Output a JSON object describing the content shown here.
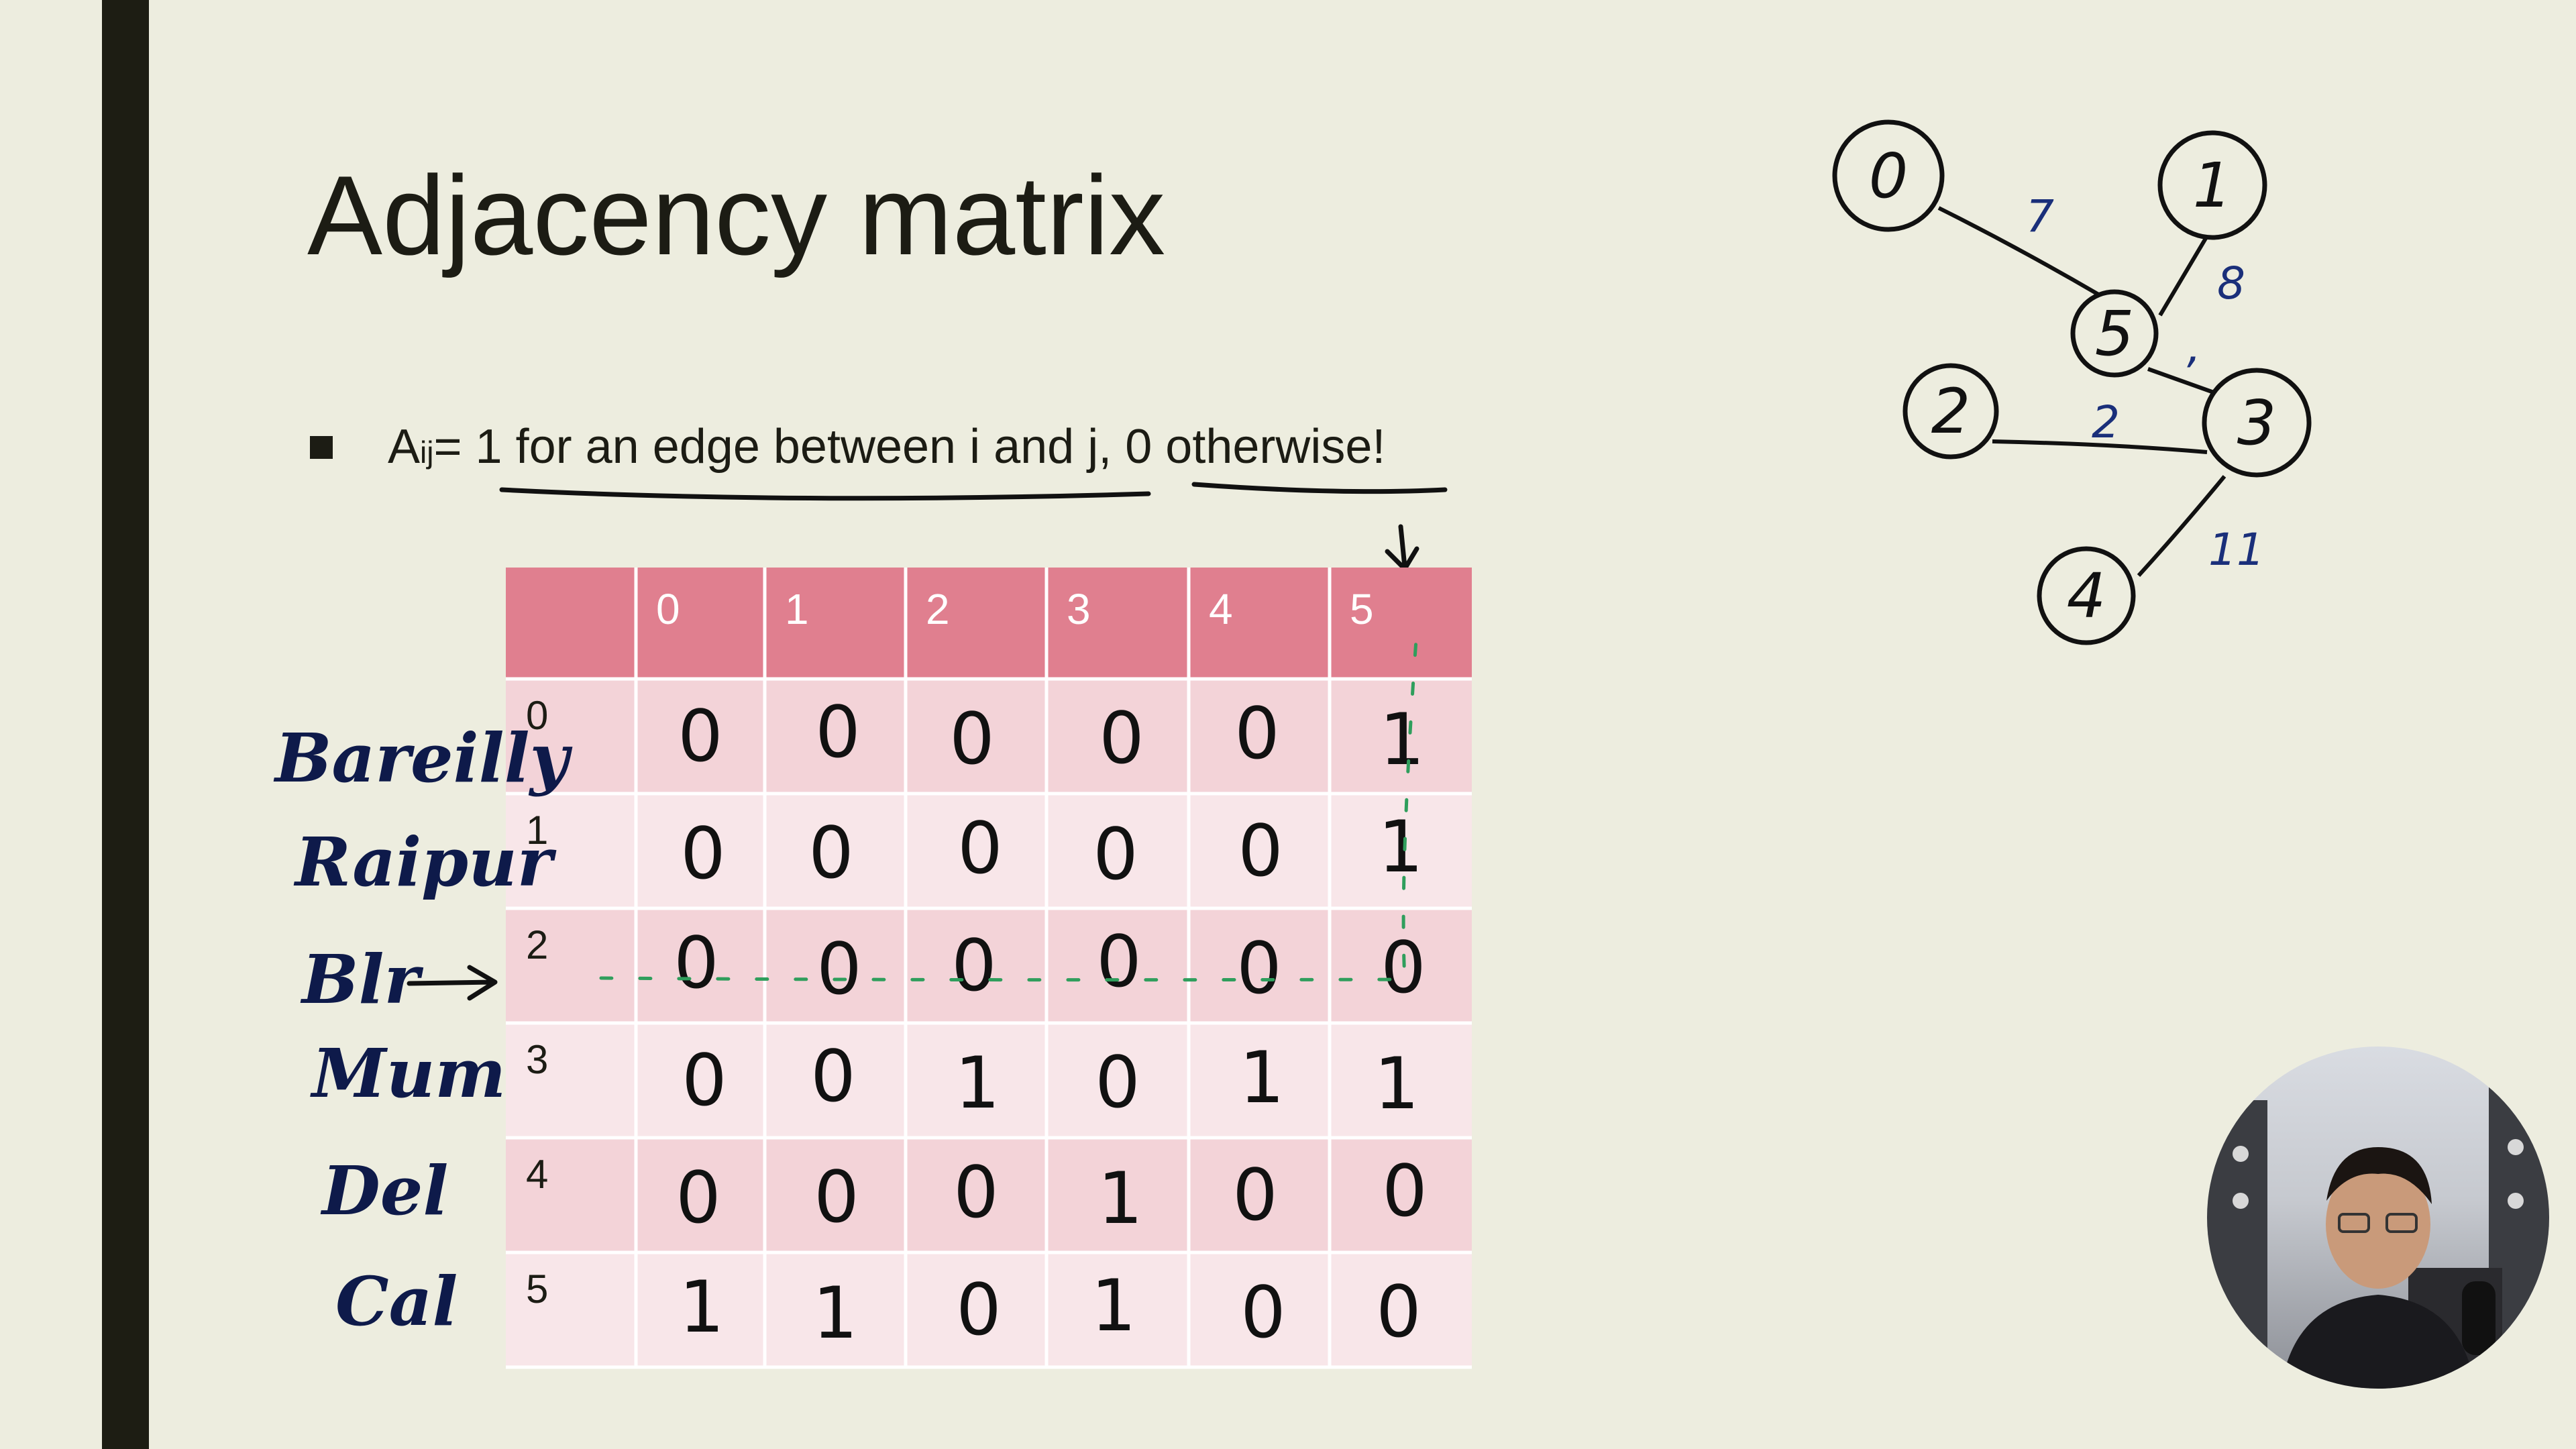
{
  "slide": {
    "title": "Adjacency matrix",
    "bullet": {
      "symbol": "A",
      "subscript": "ij",
      "text": " = 1 for an edge between i and j, 0 otherwise!"
    }
  },
  "matrix": {
    "column_headers": [
      "0",
      "1",
      "2",
      "3",
      "4",
      "5"
    ],
    "row_headers": [
      "0",
      "1",
      "2",
      "3",
      "4",
      "5"
    ],
    "handwritten_values": [
      [
        "0",
        "0",
        "0",
        "0",
        "0",
        "1"
      ],
      [
        "0",
        "0",
        "0",
        "0",
        "0",
        "1"
      ],
      [
        "0",
        "0",
        "0",
        "0",
        "0",
        "0"
      ],
      [
        "0",
        "0",
        "1",
        "0",
        "1",
        "1"
      ],
      [
        "0",
        "0",
        "0",
        "1",
        "0",
        "0"
      ],
      [
        "1",
        "1",
        "0",
        "1",
        "0",
        "0"
      ]
    ],
    "header_color": "#e07f8f",
    "row_colors": [
      "#f3d3d8",
      "#f8e6e9"
    ]
  },
  "annotations": {
    "cities": [
      "Bareilly",
      "Raipur",
      "Blr",
      "Mum",
      "Del",
      "Cal"
    ]
  },
  "graph": {
    "nodes": [
      "0",
      "1",
      "5",
      "2",
      "3",
      "4"
    ],
    "edge_weights": [
      "7",
      "8",
      ",",
      "2",
      "11"
    ]
  },
  "colors": {
    "background": "#ededdf",
    "side_bar": "#1d1d13",
    "ink": "#111111",
    "blue_ink": "#1a2f7a",
    "green_dash": "#2f9e5c"
  }
}
